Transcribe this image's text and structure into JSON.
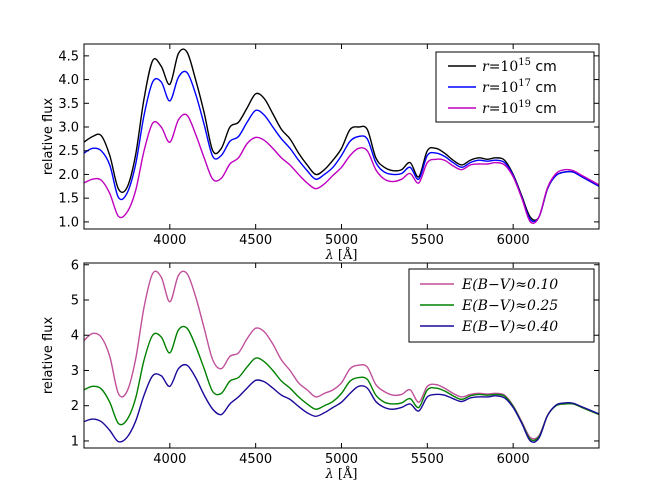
{
  "chart_data": [
    {
      "type": "line",
      "panel": "top",
      "title": "",
      "xlabel": "λ [Å]",
      "xlabel_symbol": "λ",
      "xlabel_unit": "[Å]",
      "ylabel": "relative flux",
      "xlim": [
        3500,
        6500
      ],
      "ylim": [
        0.85,
        4.75
      ],
      "xticks": [
        4000,
        4500,
        5000,
        5500,
        6000
      ],
      "yticks": [
        1.0,
        1.5,
        2.0,
        2.5,
        3.0,
        3.5,
        4.0,
        4.5
      ],
      "ytick_labels": [
        "1.0",
        "1.5",
        "2.0",
        "2.5",
        "3.0",
        "3.5",
        "4.0",
        "4.5"
      ],
      "grid": false,
      "legend_position": "top-right",
      "x": [
        3500,
        3550,
        3600,
        3650,
        3700,
        3750,
        3800,
        3850,
        3900,
        3950,
        4000,
        4050,
        4100,
        4150,
        4200,
        4250,
        4300,
        4350,
        4400,
        4450,
        4500,
        4550,
        4600,
        4650,
        4700,
        4750,
        4800,
        4850,
        4900,
        4950,
        5000,
        5050,
        5100,
        5150,
        5200,
        5250,
        5300,
        5350,
        5400,
        5450,
        5500,
        5550,
        5600,
        5650,
        5700,
        5750,
        5800,
        5850,
        5900,
        5950,
        6000,
        6050,
        6100,
        6150,
        6200,
        6250,
        6300,
        6350,
        6400,
        6450,
        6500
      ],
      "series": [
        {
          "name": "r = 10^15 cm",
          "label_prefix": "r",
          "label_mid": "=10",
          "label_exp": "15",
          "label_unit": " cm",
          "color": "#000000",
          "values": [
            2.68,
            2.8,
            2.82,
            2.4,
            1.7,
            1.72,
            2.4,
            3.6,
            4.4,
            4.28,
            3.9,
            4.55,
            4.58,
            4.0,
            3.3,
            2.5,
            2.55,
            3.0,
            3.1,
            3.4,
            3.7,
            3.6,
            3.28,
            2.95,
            2.75,
            2.45,
            2.2,
            2.0,
            2.1,
            2.3,
            2.55,
            2.95,
            3.0,
            2.95,
            2.35,
            2.15,
            2.08,
            2.1,
            2.25,
            1.95,
            2.5,
            2.55,
            2.45,
            2.3,
            2.2,
            2.3,
            2.35,
            2.32,
            2.35,
            2.3,
            2.0,
            1.55,
            1.1,
            1.1,
            1.7,
            1.98,
            2.05,
            2.05,
            1.95,
            1.85,
            1.75
          ]
        },
        {
          "name": "r = 10^17 cm",
          "label_prefix": "r",
          "label_mid": "=10",
          "label_exp": "17",
          "label_unit": " cm",
          "color": "#0000ff",
          "values": [
            2.45,
            2.55,
            2.5,
            2.2,
            1.52,
            1.6,
            2.2,
            3.25,
            3.95,
            3.95,
            3.55,
            4.05,
            4.15,
            3.7,
            3.05,
            2.38,
            2.4,
            2.7,
            2.8,
            3.1,
            3.35,
            3.25,
            3.0,
            2.75,
            2.55,
            2.3,
            2.08,
            1.9,
            2.0,
            2.15,
            2.4,
            2.7,
            2.8,
            2.75,
            2.25,
            2.05,
            2.0,
            2.02,
            2.15,
            1.9,
            2.4,
            2.45,
            2.38,
            2.25,
            2.15,
            2.25,
            2.3,
            2.28,
            2.3,
            2.25,
            1.98,
            1.52,
            1.05,
            1.1,
            1.7,
            1.98,
            2.05,
            2.05,
            1.95,
            1.85,
            1.75
          ]
        },
        {
          "name": "r = 10^19 cm",
          "label_prefix": "r",
          "label_mid": "=10",
          "label_exp": "19",
          "label_unit": " cm",
          "color": "#bf00bf",
          "values": [
            1.82,
            1.9,
            1.88,
            1.6,
            1.12,
            1.2,
            1.65,
            2.5,
            3.08,
            3.0,
            2.68,
            3.15,
            3.25,
            2.85,
            2.35,
            1.9,
            1.92,
            2.22,
            2.35,
            2.65,
            2.78,
            2.72,
            2.55,
            2.35,
            2.2,
            2.0,
            1.82,
            1.7,
            1.8,
            1.98,
            2.15,
            2.4,
            2.55,
            2.5,
            2.1,
            1.9,
            1.85,
            1.9,
            2.02,
            1.82,
            2.25,
            2.32,
            2.3,
            2.18,
            2.1,
            2.2,
            2.22,
            2.22,
            2.25,
            2.2,
            1.95,
            1.5,
            1.0,
            1.1,
            1.72,
            2.02,
            2.1,
            2.08,
            1.98,
            1.88,
            1.78
          ]
        }
      ]
    },
    {
      "type": "line",
      "panel": "bottom",
      "title": "",
      "xlabel": "λ [Å]",
      "xlabel_symbol": "λ",
      "xlabel_unit": "[Å]",
      "ylabel": "relative flux",
      "xlim": [
        3500,
        6500
      ],
      "ylim": [
        0.8,
        6.05
      ],
      "xticks": [
        4000,
        4500,
        5000,
        5500,
        6000
      ],
      "yticks": [
        1,
        2,
        3,
        4,
        5,
        6
      ],
      "ytick_labels": [
        "1",
        "2",
        "3",
        "4",
        "5",
        "6"
      ],
      "grid": false,
      "legend_position": "top-right",
      "x": [
        3500,
        3550,
        3600,
        3650,
        3700,
        3750,
        3800,
        3850,
        3900,
        3950,
        4000,
        4050,
        4100,
        4150,
        4200,
        4250,
        4300,
        4350,
        4400,
        4450,
        4500,
        4550,
        4600,
        4650,
        4700,
        4750,
        4800,
        4850,
        4900,
        4950,
        5000,
        5050,
        5100,
        5150,
        5200,
        5250,
        5300,
        5350,
        5400,
        5450,
        5500,
        5550,
        5600,
        5650,
        5700,
        5750,
        5800,
        5850,
        5900,
        5950,
        6000,
        6050,
        6100,
        6150,
        6200,
        6250,
        6300,
        6350,
        6400,
        6450,
        6500
      ],
      "series": [
        {
          "name": "E(B−V)≈0.10",
          "label_text": "E(B−V)≈0.10",
          "color": "#c0509a",
          "values": [
            3.85,
            4.05,
            3.95,
            3.4,
            2.35,
            2.4,
            3.3,
            4.8,
            5.75,
            5.65,
            4.95,
            5.7,
            5.75,
            5.1,
            4.2,
            3.3,
            3.05,
            3.4,
            3.5,
            3.9,
            4.2,
            4.1,
            3.75,
            3.3,
            3.0,
            2.65,
            2.45,
            2.25,
            2.35,
            2.45,
            2.65,
            3.05,
            3.15,
            3.1,
            2.6,
            2.4,
            2.3,
            2.32,
            2.45,
            2.1,
            2.55,
            2.6,
            2.5,
            2.35,
            2.25,
            2.32,
            2.35,
            2.33,
            2.35,
            2.3,
            2.0,
            1.55,
            1.1,
            1.15,
            1.72,
            2.0,
            2.05,
            2.05,
            1.95,
            1.85,
            1.75
          ]
        },
        {
          "name": "E(B−V)≈0.25",
          "label_text": "E(B−V)≈0.25",
          "color": "#008000",
          "values": [
            2.45,
            2.55,
            2.48,
            2.1,
            1.5,
            1.6,
            2.2,
            3.3,
            4.0,
            3.95,
            3.5,
            4.15,
            4.2,
            3.7,
            3.05,
            2.4,
            2.35,
            2.7,
            2.8,
            3.1,
            3.35,
            3.25,
            3.0,
            2.7,
            2.5,
            2.25,
            2.05,
            1.9,
            2.0,
            2.12,
            2.35,
            2.7,
            2.8,
            2.75,
            2.3,
            2.1,
            2.05,
            2.08,
            2.2,
            1.95,
            2.45,
            2.5,
            2.42,
            2.28,
            2.18,
            2.28,
            2.32,
            2.3,
            2.32,
            2.27,
            1.98,
            1.52,
            1.05,
            1.12,
            1.72,
            2.0,
            2.05,
            2.05,
            1.95,
            1.85,
            1.75
          ]
        },
        {
          "name": "E(B−V)≈0.40",
          "label_text": "E(B−V)≈0.40",
          "color": "#1a0a9a",
          "values": [
            1.55,
            1.62,
            1.55,
            1.3,
            0.98,
            1.1,
            1.55,
            2.3,
            2.85,
            2.85,
            2.55,
            3.05,
            3.15,
            2.8,
            2.3,
            1.9,
            1.75,
            2.05,
            2.25,
            2.5,
            2.72,
            2.68,
            2.5,
            2.3,
            2.18,
            1.98,
            1.8,
            1.7,
            1.8,
            1.95,
            2.1,
            2.35,
            2.55,
            2.5,
            2.12,
            1.95,
            1.9,
            1.95,
            2.05,
            1.85,
            2.25,
            2.32,
            2.3,
            2.2,
            2.12,
            2.22,
            2.25,
            2.25,
            2.28,
            2.22,
            1.95,
            1.5,
            1.0,
            1.08,
            1.72,
            2.02,
            2.08,
            2.07,
            1.97,
            1.87,
            1.77
          ]
        }
      ]
    }
  ]
}
